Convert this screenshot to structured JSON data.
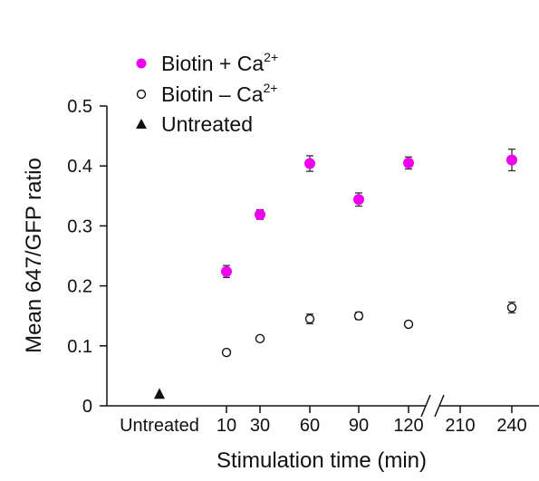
{
  "chart_data": {
    "type": "scatter",
    "xlabel": "Stimulation time (min)",
    "ylabel": "Mean 647/GFP ratio",
    "ylim": [
      0,
      0.5
    ],
    "yticks": [
      {
        "value": 0,
        "label": "0"
      },
      {
        "value": 0.1,
        "label": "0.1"
      },
      {
        "value": 0.2,
        "label": "0.2"
      },
      {
        "value": 0.3,
        "label": "0.3"
      },
      {
        "value": 0.4,
        "label": "0.4"
      },
      {
        "value": 0.5,
        "label": "0.5"
      }
    ],
    "xticks": [
      "Untreated",
      "10",
      "30",
      "60",
      "90",
      "120",
      "210",
      "240"
    ],
    "axis_break": "between 120 and 210",
    "grid": false,
    "legend_position": "top-left",
    "series": [
      {
        "name": "Biotin + Ca",
        "name_superscript": "2+",
        "marker": "filled-circle",
        "color": "#ee00ee",
        "points": [
          {
            "x": "10",
            "y": 0.224,
            "err": 0.01
          },
          {
            "x": "30",
            "y": 0.319,
            "err": 0.008
          },
          {
            "x": "60",
            "y": 0.404,
            "err": 0.013
          },
          {
            "x": "90",
            "y": 0.344,
            "err": 0.011
          },
          {
            "x": "120",
            "y": 0.405,
            "err": 0.01
          },
          {
            "x": "240",
            "y": 0.41,
            "err": 0.018
          }
        ]
      },
      {
        "name": "Biotin – Ca",
        "name_superscript": "2+",
        "marker": "open-circle",
        "color": "#111111",
        "points": [
          {
            "x": "10",
            "y": 0.089,
            "err": 0.004
          },
          {
            "x": "30",
            "y": 0.112,
            "err": 0.004
          },
          {
            "x": "60",
            "y": 0.145,
            "err": 0.008
          },
          {
            "x": "90",
            "y": 0.15,
            "err": 0.006
          },
          {
            "x": "120",
            "y": 0.136,
            "err": 0.004
          },
          {
            "x": "240",
            "y": 0.164,
            "err": 0.009
          }
        ]
      },
      {
        "name": "Untreated",
        "marker": "filled-triangle",
        "color": "#111111",
        "points": [
          {
            "x": "Untreated",
            "y": 0.02,
            "err": 0
          }
        ]
      }
    ]
  }
}
